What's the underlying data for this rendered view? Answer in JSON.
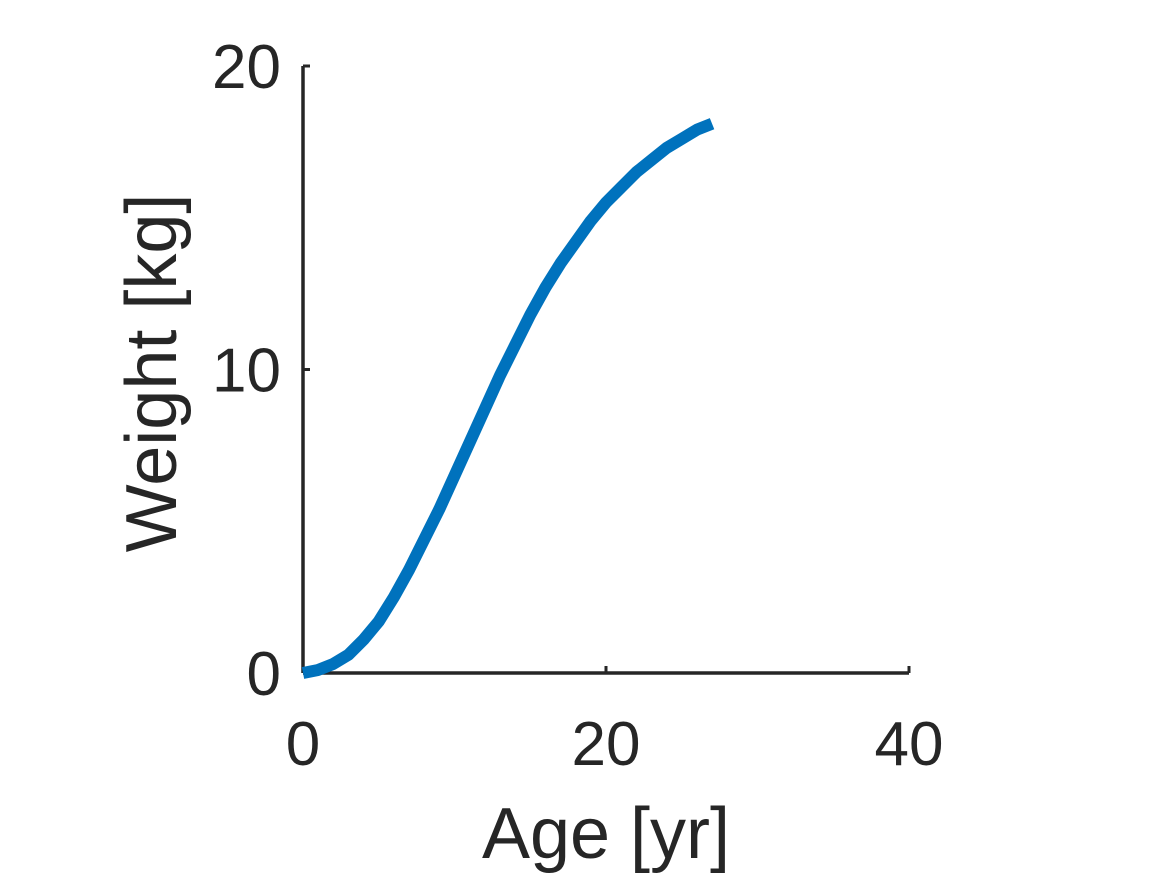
{
  "chart_data": {
    "type": "line",
    "title": "",
    "xlabel": "Age [yr]",
    "ylabel": "Weight [kg]",
    "xlim": [
      0,
      40
    ],
    "ylim": [
      0,
      20
    ],
    "xticks": [
      0,
      20,
      40
    ],
    "xtick_labels": [
      "0",
      "20",
      "40"
    ],
    "yticks": [
      0,
      10,
      20
    ],
    "ytick_labels": [
      "0",
      "10",
      "20"
    ],
    "grid": false,
    "legend": "none",
    "series": [
      {
        "color": "#0072BD",
        "x": [
          0,
          1,
          2,
          3,
          4,
          5,
          6,
          7,
          8,
          9,
          10,
          11,
          12,
          13,
          14,
          15,
          16,
          17,
          18,
          19,
          20,
          21,
          22,
          23,
          24,
          25,
          26,
          27
        ],
        "y": [
          0,
          0.1,
          0.3,
          0.6,
          1.1,
          1.7,
          2.5,
          3.4,
          4.4,
          5.4,
          6.5,
          7.6,
          8.7,
          9.8,
          10.8,
          11.8,
          12.7,
          13.5,
          14.2,
          14.9,
          15.5,
          16.0,
          16.5,
          16.9,
          17.3,
          17.6,
          17.9,
          18.1
        ]
      }
    ]
  }
}
